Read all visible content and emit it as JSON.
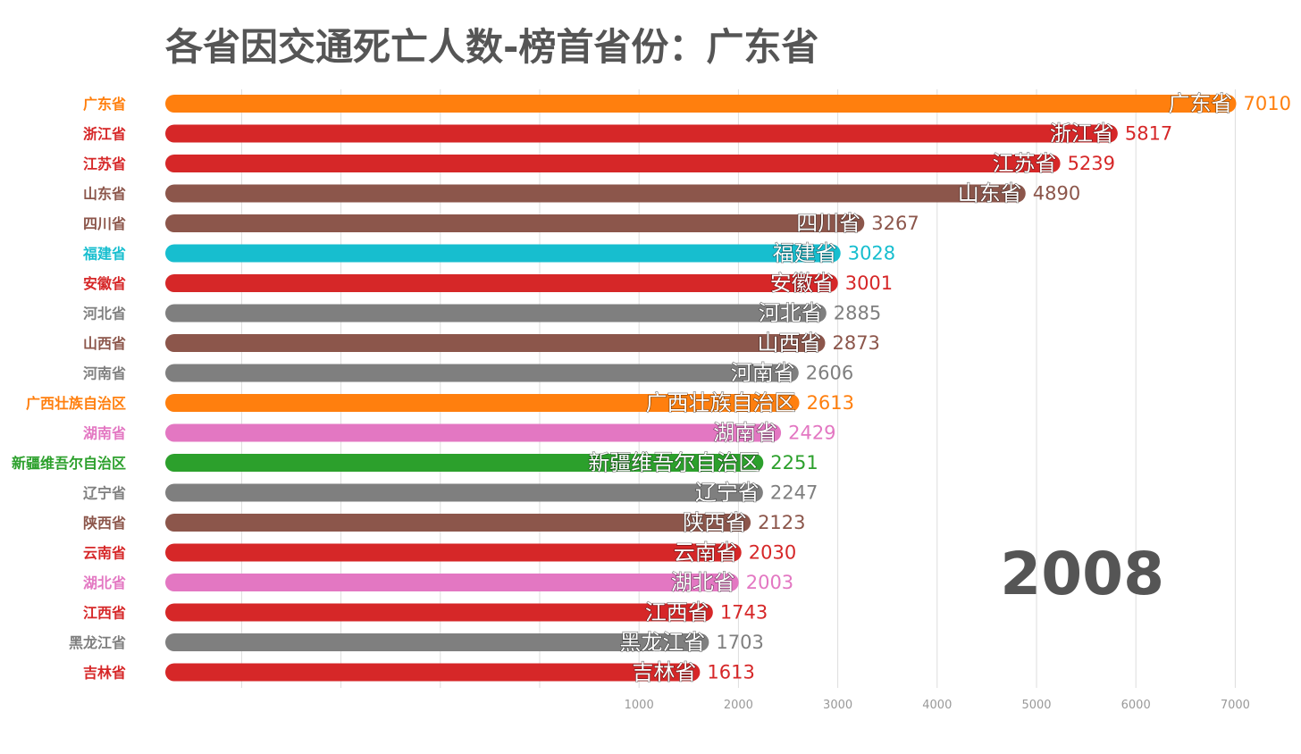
{
  "chart_data": {
    "type": "bar",
    "orientation": "horizontal",
    "title": "各省因交通死亡人数-榜首省份：广东省",
    "year_label": "2008",
    "xticks": [
      1000,
      2000,
      3000,
      4000,
      5000,
      6000,
      7000
    ],
    "grid": true,
    "series": [
      {
        "category": "广东省",
        "value": 7010,
        "color": "#ff7f0e"
      },
      {
        "category": "浙江省",
        "value": 5817,
        "color": "#d62728"
      },
      {
        "category": "江苏省",
        "value": 5239,
        "color": "#d62728"
      },
      {
        "category": "山东省",
        "value": 4890,
        "color": "#8c564b"
      },
      {
        "category": "四川省",
        "value": 3267,
        "color": "#8c564b"
      },
      {
        "category": "福建省",
        "value": 3028,
        "color": "#17becf"
      },
      {
        "category": "安徽省",
        "value": 3001,
        "color": "#d62728"
      },
      {
        "category": "河北省",
        "value": 2885,
        "color": "#7f7f7f"
      },
      {
        "category": "山西省",
        "value": 2873,
        "color": "#8c564b"
      },
      {
        "category": "河南省",
        "value": 2606,
        "color": "#7f7f7f"
      },
      {
        "category": "广西壮族自治区",
        "value": 2613,
        "color": "#ff7f0e"
      },
      {
        "category": "湖南省",
        "value": 2429,
        "color": "#e377c2"
      },
      {
        "category": "新疆维吾尔自治区",
        "value": 2251,
        "color": "#2ca02c"
      },
      {
        "category": "辽宁省",
        "value": 2247,
        "color": "#7f7f7f"
      },
      {
        "category": "陕西省",
        "value": 2123,
        "color": "#8c564b"
      },
      {
        "category": "云南省",
        "value": 2030,
        "color": "#d62728"
      },
      {
        "category": "湖北省",
        "value": 2003,
        "color": "#e377c2"
      },
      {
        "category": "江西省",
        "value": 1743,
        "color": "#d62728"
      },
      {
        "category": "吉林省",
        "value": 1613,
        "color": "#d62728"
      },
      {
        "category": "黑龙江省",
        "value": 1703,
        "color": "#7f7f7f"
      }
    ]
  }
}
